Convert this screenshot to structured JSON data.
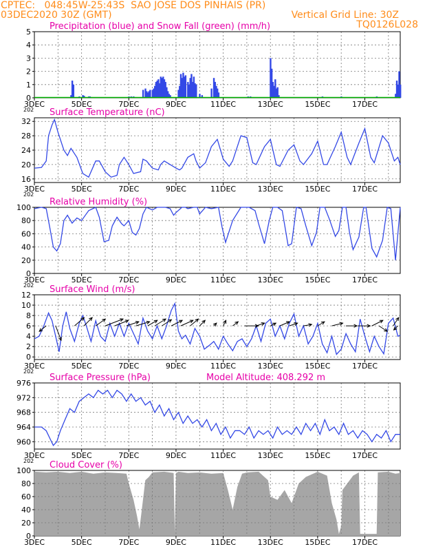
{
  "header": {
    "line1_left": "CPTEC:   048:45W-25:43S  SAO JOSE DOS PINHAIS (PR)",
    "line2_left": "03DEC2020 30Z (GMT)",
    "line2_right": "Vertical Grid Line: 30Z",
    "line3_right": "TQ0126L028"
  },
  "colors": {
    "header": "#ff8c1a",
    "title": "#e600a8",
    "series": "#3348e6",
    "snow": "#00b200",
    "cloud": "#a6a6a6"
  },
  "x_ticks": [
    "3DEC",
    "5DEC",
    "7DEC",
    "9DEC",
    "11DEC",
    "13DEC",
    "15DEC",
    "17DEC"
  ],
  "x_tick_days": [
    0,
    2,
    4,
    6,
    8,
    10,
    12,
    14
  ],
  "x_range_days": [
    0,
    15.5
  ],
  "year_fragment": "202",
  "chart_data": [
    {
      "type": "bar",
      "title": "Precipitation (blue) and Snow Fall (green) (mm/h)",
      "ylim": [
        0,
        5
      ],
      "yticks": [
        0,
        1,
        2,
        3,
        4,
        5
      ],
      "series": [
        {
          "name": "Precipitation",
          "x_days": [
            1.55,
            1.6,
            1.65,
            1.9,
            2.05,
            2.1,
            2.3,
            2.35,
            4.0,
            4.1,
            4.2,
            4.6,
            4.7,
            4.75,
            4.8,
            4.85,
            4.9,
            5.0,
            5.05,
            5.1,
            5.15,
            5.2,
            5.25,
            5.3,
            5.35,
            5.4,
            5.45,
            5.5,
            5.55,
            5.6,
            5.65,
            5.7,
            5.75,
            6.1,
            6.15,
            6.2,
            6.25,
            6.3,
            6.35,
            6.4,
            6.5,
            6.55,
            6.6,
            6.65,
            6.7,
            6.75,
            6.8,
            6.85,
            7.0,
            7.1,
            7.5,
            7.6,
            7.65,
            7.7,
            7.75,
            7.8,
            9.0,
            9.05,
            9.1,
            9.15,
            9.2,
            10.0,
            10.05,
            10.1,
            10.15,
            10.2,
            10.25,
            10.3,
            10.35,
            12.2,
            12.3,
            13.0,
            14.4,
            14.5,
            15.3,
            15.35,
            15.4,
            15.45,
            15.5
          ],
          "values": [
            0.2,
            1.3,
            1.0,
            0.1,
            0.2,
            0.15,
            0.1,
            0.1,
            0.1,
            0.1,
            0.1,
            0.6,
            0.7,
            0.5,
            0.4,
            0.5,
            0.6,
            0.6,
            0.7,
            0.9,
            1.2,
            1.3,
            1.4,
            1.1,
            1.6,
            1.5,
            1.6,
            1.4,
            1.2,
            0.8,
            0.5,
            0.3,
            0.2,
            0.6,
            0.9,
            1.8,
            1.5,
            1.9,
            1.6,
            1.7,
            1.2,
            1.0,
            1.5,
            1.8,
            1.2,
            1.6,
            1.1,
            1.0,
            0.3,
            0.2,
            0.7,
            1.5,
            1.2,
            0.9,
            0.7,
            0.4,
            0.05,
            0.1,
            0.05,
            0.1,
            0.05,
            3.0,
            2.2,
            1.2,
            0.9,
            1.4,
            0.7,
            0.8,
            0.2,
            0.1,
            0.05,
            0.1,
            0.05,
            0.1,
            0.3,
            1.3,
            1.0,
            2.0,
            1.0
          ]
        },
        {
          "name": "Snow Fall",
          "x_days": [
            0,
            15.5
          ],
          "values": [
            0,
            0
          ]
        }
      ]
    },
    {
      "type": "line",
      "title": "Surface Temperature (nC)",
      "ylim": [
        15,
        33
      ],
      "yticks": [
        16,
        20,
        24,
        28,
        32
      ],
      "x_days": [
        0,
        0.3,
        0.5,
        0.6,
        0.75,
        0.85,
        1.0,
        1.25,
        1.4,
        1.55,
        1.8,
        2.05,
        2.3,
        2.6,
        2.75,
        3.0,
        3.25,
        3.5,
        3.6,
        3.8,
        4.0,
        4.2,
        4.5,
        4.6,
        4.75,
        5.0,
        5.25,
        5.35,
        5.5,
        5.75,
        6.0,
        6.15,
        6.25,
        6.5,
        6.75,
        6.85,
        7.0,
        7.25,
        7.5,
        7.75,
        8.0,
        8.25,
        8.4,
        8.75,
        9.0,
        9.25,
        9.4,
        9.75,
        10.0,
        10.25,
        10.4,
        10.75,
        11.0,
        11.25,
        11.4,
        11.75,
        12.0,
        12.25,
        12.4,
        12.75,
        13.0,
        13.25,
        13.4,
        13.75,
        14.0,
        14.25,
        14.4,
        14.75,
        15.0,
        15.25,
        15.4,
        15.5
      ],
      "values": [
        19,
        19.2,
        21,
        28,
        31,
        32.5,
        29,
        24,
        22.5,
        24.5,
        22,
        17.5,
        16.5,
        21,
        21,
        18,
        16.5,
        17,
        20,
        22,
        20,
        17.5,
        18,
        21.5,
        21,
        19,
        18.5,
        20,
        21,
        20,
        19,
        18.5,
        19,
        22,
        23,
        21,
        19,
        20.5,
        25,
        27,
        21.5,
        19.5,
        21,
        28,
        27.5,
        20.5,
        20,
        25,
        27,
        20,
        19.5,
        24,
        25.5,
        21,
        20,
        23,
        26.5,
        20,
        20,
        25,
        29,
        22,
        20,
        26,
        30,
        22,
        20.5,
        28,
        26,
        21,
        22,
        20
      ]
    },
    {
      "type": "line",
      "title": "Relative Humidity (%)",
      "ylim": [
        0,
        100
      ],
      "yticks": [
        0,
        20,
        40,
        60,
        80,
        100
      ],
      "x_days": [
        0,
        0.3,
        0.5,
        0.65,
        0.8,
        0.95,
        1.1,
        1.25,
        1.4,
        1.6,
        1.8,
        2.0,
        2.3,
        2.6,
        2.75,
        2.95,
        3.15,
        3.3,
        3.5,
        3.7,
        3.8,
        4.0,
        4.15,
        4.3,
        4.45,
        4.6,
        4.75,
        5.0,
        5.2,
        5.4,
        5.55,
        5.75,
        5.9,
        6.0,
        6.25,
        6.4,
        6.5,
        6.75,
        6.9,
        7.0,
        7.25,
        7.5,
        7.8,
        7.95,
        8.1,
        8.4,
        8.75,
        8.95,
        9.1,
        9.35,
        9.5,
        9.75,
        9.95,
        10.1,
        10.3,
        10.5,
        10.75,
        10.9,
        11.1,
        11.3,
        11.5,
        11.75,
        11.95,
        12.1,
        12.3,
        12.5,
        12.75,
        12.9,
        13.05,
        13.2,
        13.35,
        13.5,
        13.75,
        13.95,
        14.05,
        14.3,
        14.5,
        14.75,
        14.95,
        15.1,
        15.3,
        15.5
      ],
      "values": [
        98,
        100,
        98,
        70,
        40,
        34,
        45,
        80,
        88,
        76,
        84,
        80,
        95,
        100,
        85,
        48,
        50,
        72,
        85,
        75,
        72,
        80,
        62,
        58,
        68,
        90,
        100,
        96,
        100,
        100,
        100,
        98,
        88,
        92,
        100,
        100,
        98,
        100,
        100,
        90,
        100,
        98,
        100,
        70,
        47,
        80,
        100,
        100,
        100,
        95,
        75,
        45,
        80,
        100,
        100,
        95,
        42,
        45,
        100,
        98,
        72,
        42,
        62,
        100,
        100,
        82,
        56,
        65,
        100,
        100,
        62,
        36,
        55,
        100,
        100,
        38,
        25,
        50,
        100,
        98,
        20,
        100
      ]
    },
    {
      "type": "line",
      "title": "Surface Wind (m/s)",
      "ylim": [
        -0.5,
        12
      ],
      "yticks": [
        0,
        2,
        4,
        6,
        8,
        10,
        12
      ],
      "x_days": [
        0,
        0.2,
        0.4,
        0.6,
        0.75,
        0.9,
        1.05,
        1.2,
        1.35,
        1.5,
        1.7,
        1.9,
        2.05,
        2.2,
        2.4,
        2.6,
        2.8,
        3.0,
        3.2,
        3.4,
        3.6,
        3.8,
        4.0,
        4.2,
        4.4,
        4.6,
        4.8,
        5.0,
        5.2,
        5.4,
        5.6,
        5.8,
        5.95,
        6.1,
        6.25,
        6.4,
        6.6,
        6.8,
        7.0,
        7.2,
        7.4,
        7.6,
        7.8,
        8.0,
        8.2,
        8.4,
        8.6,
        8.8,
        9.0,
        9.2,
        9.4,
        9.6,
        9.8,
        10.0,
        10.2,
        10.4,
        10.6,
        10.8,
        11.0,
        11.2,
        11.4,
        11.6,
        11.8,
        12.0,
        12.2,
        12.4,
        12.6,
        12.8,
        13.0,
        13.2,
        13.4,
        13.6,
        13.8,
        14.0,
        14.2,
        14.4,
        14.6,
        14.8,
        15.0,
        15.2,
        15.4,
        15.5
      ],
      "values": [
        3.5,
        4,
        6,
        8.5,
        7,
        4,
        1,
        6,
        8.7,
        5.5,
        3,
        6.5,
        8,
        6,
        3,
        7,
        4,
        3,
        6.5,
        4,
        6.5,
        4,
        6.5,
        4.5,
        2.5,
        7.5,
        5,
        3.5,
        6,
        3.5,
        6,
        9,
        10.3,
        5,
        3.5,
        4.2,
        2.5,
        5.5,
        4,
        1.5,
        2.2,
        3,
        1.5,
        4,
        2.5,
        1.2,
        3,
        3.5,
        2,
        3.5,
        6,
        3,
        6.5,
        7.3,
        4,
        6,
        3.5,
        6.5,
        8.3,
        4,
        6,
        2.5,
        4,
        6.5,
        2.5,
        0.8,
        4,
        0.5,
        1.5,
        4.5,
        2.5,
        1,
        7.3,
        4,
        1,
        4,
        2,
        0.6,
        6.5,
        7.5,
        4,
        4.2
      ],
      "arrows": [
        {
          "x_day": 0.5,
          "dx": -10,
          "dy": 8
        },
        {
          "x_day": 0.9,
          "dx": 8,
          "dy": 21
        },
        {
          "x_day": 1.7,
          "dx": 14,
          "dy": -12
        },
        {
          "x_day": 2.1,
          "dx": 12,
          "dy": -12
        },
        {
          "x_day": 2.6,
          "dx": 14,
          "dy": -10
        },
        {
          "x_day": 3.0,
          "dx": 26,
          "dy": -10
        },
        {
          "x_day": 3.4,
          "dx": 20,
          "dy": -8
        },
        {
          "x_day": 3.9,
          "dx": 18,
          "dy": -6
        },
        {
          "x_day": 4.3,
          "dx": 20,
          "dy": -6
        },
        {
          "x_day": 4.8,
          "dx": 14,
          "dy": -8
        },
        {
          "x_day": 5.1,
          "dx": 16,
          "dy": -10
        },
        {
          "x_day": 5.4,
          "dx": 14,
          "dy": -9
        },
        {
          "x_day": 5.8,
          "dx": 16,
          "dy": -8
        },
        {
          "x_day": 6.2,
          "dx": 18,
          "dy": -8
        },
        {
          "x_day": 6.6,
          "dx": 12,
          "dy": -10
        },
        {
          "x_day": 7.0,
          "dx": 8,
          "dy": -8
        },
        {
          "x_day": 7.6,
          "dx": 4,
          "dy": -4
        },
        {
          "x_day": 8.0,
          "dx": 4,
          "dy": -8
        },
        {
          "x_day": 8.4,
          "dx": 8,
          "dy": -6
        },
        {
          "x_day": 8.9,
          "dx": 20,
          "dy": 0
        },
        {
          "x_day": 9.4,
          "dx": 12,
          "dy": -4
        },
        {
          "x_day": 10.0,
          "dx": 8,
          "dy": -4
        },
        {
          "x_day": 10.4,
          "dx": 14,
          "dy": -6
        },
        {
          "x_day": 10.8,
          "dx": 12,
          "dy": -4
        },
        {
          "x_day": 11.4,
          "dx": 12,
          "dy": -2
        },
        {
          "x_day": 12.0,
          "dx": 10,
          "dy": -6
        },
        {
          "x_day": 12.6,
          "dx": 16,
          "dy": -4
        },
        {
          "x_day": 13.2,
          "dx": 16,
          "dy": 0
        },
        {
          "x_day": 13.7,
          "dx": 18,
          "dy": 0
        },
        {
          "x_day": 14.3,
          "dx": 16,
          "dy": -8
        },
        {
          "x_day": 14.6,
          "dx": 12,
          "dy": 8
        },
        {
          "x_day": 15.2,
          "dx": 8,
          "dy": -12
        },
        {
          "x_day": 15.4,
          "dx": -6,
          "dy": 6
        }
      ]
    },
    {
      "type": "line",
      "title": "Surface Pressure (hPa)",
      "subtitle": "Model Altitude: 408.292 m",
      "ylim": [
        958,
        976
      ],
      "yticks": [
        960,
        964,
        968,
        972,
        976
      ],
      "x_days": [
        0,
        0.3,
        0.5,
        0.65,
        0.8,
        0.95,
        1.1,
        1.3,
        1.5,
        1.7,
        1.9,
        2.1,
        2.3,
        2.5,
        2.7,
        2.9,
        3.1,
        3.3,
        3.5,
        3.7,
        3.9,
        4.1,
        4.3,
        4.5,
        4.7,
        4.9,
        5.1,
        5.3,
        5.5,
        5.7,
        5.9,
        6.1,
        6.3,
        6.5,
        6.7,
        6.9,
        7.1,
        7.3,
        7.5,
        7.7,
        7.9,
        8.1,
        8.3,
        8.5,
        8.7,
        8.9,
        9.1,
        9.3,
        9.5,
        9.7,
        9.9,
        10.1,
        10.3,
        10.5,
        10.7,
        10.9,
        11.1,
        11.3,
        11.5,
        11.7,
        11.9,
        12.1,
        12.3,
        12.5,
        12.7,
        12.9,
        13.1,
        13.3,
        13.5,
        13.7,
        13.9,
        14.1,
        14.3,
        14.5,
        14.7,
        14.9,
        15.1,
        15.3,
        15.5
      ],
      "values": [
        964,
        964,
        963,
        961,
        959,
        960,
        963,
        966,
        969,
        968,
        971,
        972,
        973,
        972,
        974,
        973,
        974,
        972,
        974,
        973,
        971,
        973,
        971,
        972,
        970,
        971,
        968,
        970,
        967,
        969,
        966,
        968,
        965,
        967,
        965,
        966,
        964,
        966,
        963,
        965,
        962,
        964,
        961,
        963,
        963,
        962,
        964,
        961,
        963,
        962,
        963,
        961,
        964,
        962,
        963,
        962,
        964,
        962,
        965,
        963,
        965,
        962,
        966,
        963,
        964,
        962,
        965,
        962,
        963,
        961,
        963,
        962,
        960,
        962,
        961,
        963,
        960,
        962,
        962
      ]
    },
    {
      "type": "area",
      "title": "Cloud Cover (%)",
      "ylim": [
        0,
        100
      ],
      "yticks": [
        0,
        20,
        40,
        60,
        80,
        100
      ],
      "x_days": [
        0,
        0.5,
        1.0,
        1.5,
        2.0,
        2.5,
        3.0,
        3.5,
        3.9,
        4.0,
        4.2,
        4.35,
        4.45,
        4.55,
        4.7,
        4.85,
        5.0,
        5.5,
        5.9,
        5.95,
        6.0,
        6.05,
        6.1,
        6.5,
        7.0,
        7.5,
        8.0,
        8.2,
        8.4,
        8.6,
        8.8,
        9.0,
        9.5,
        9.9,
        10.0,
        10.3,
        10.6,
        10.9,
        11.2,
        11.5,
        12.0,
        12.4,
        12.6,
        12.8,
        12.9,
        13.0,
        13.05,
        13.5,
        13.75,
        13.8,
        14.5,
        14.55,
        15.0,
        15.3,
        15.5
      ],
      "values": [
        98,
        97,
        98,
        96,
        98,
        95,
        97,
        96,
        95,
        80,
        55,
        30,
        10,
        40,
        85,
        90,
        97,
        98,
        96,
        5,
        96,
        97,
        98,
        96,
        97,
        95,
        96,
        70,
        40,
        75,
        95,
        97,
        98,
        85,
        60,
        55,
        70,
        50,
        80,
        90,
        98,
        92,
        50,
        25,
        3,
        15,
        70,
        92,
        97,
        3,
        3,
        97,
        98,
        95,
        96
      ]
    }
  ]
}
